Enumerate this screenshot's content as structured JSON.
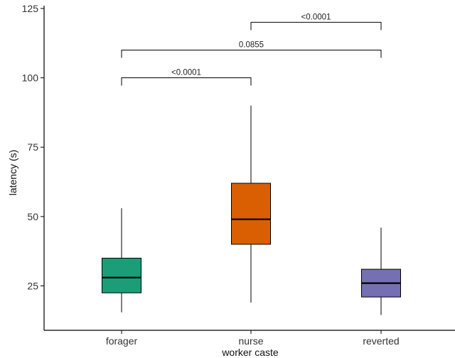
{
  "chart_data": {
    "type": "box",
    "title": "",
    "xlabel": "worker caste",
    "ylabel": "latency (s)",
    "ylim": [
      9,
      126
    ],
    "yticks": [
      25,
      50,
      75,
      100,
      125
    ],
    "categories": [
      "forager",
      "nurse",
      "reverted"
    ],
    "boxes": [
      {
        "category": "forager",
        "min": 15.5,
        "q1": 22.5,
        "median": 28,
        "q3": 35,
        "max": 53,
        "color": "#1b9e77"
      },
      {
        "category": "nurse",
        "min": 19,
        "q1": 40,
        "median": 49,
        "q3": 62,
        "max": 90,
        "color": "#d95f02"
      },
      {
        "category": "reverted",
        "min": 14.5,
        "q1": 21,
        "median": 26,
        "q3": 31,
        "max": 46,
        "color": "#7570b3"
      }
    ],
    "comparisons": [
      {
        "from": "nurse",
        "to": "reverted",
        "y": 120,
        "label": "<0.0001"
      },
      {
        "from": "forager",
        "to": "reverted",
        "y": 110,
        "label": "0.0855"
      },
      {
        "from": "forager",
        "to": "nurse",
        "y": 100,
        "label": "<0.0001"
      }
    ],
    "grid": false
  }
}
